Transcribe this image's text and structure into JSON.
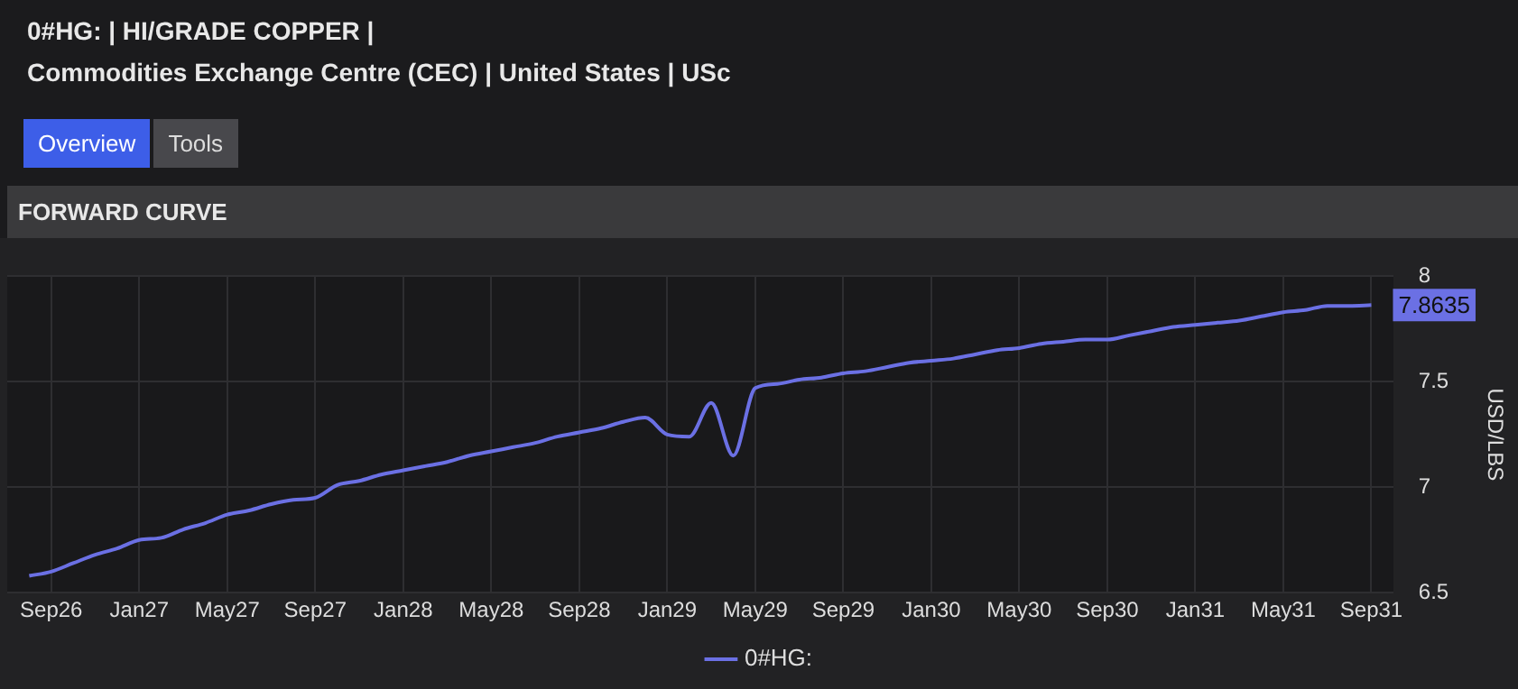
{
  "chart_data": {
    "type": "line",
    "title": "0#HG: | HI/GRADE COPPER |\nCommodities Exchange Centre (CEC) | United States | USc",
    "subtitle": "FORWARD CURVE",
    "ylabel": "USD/LBS",
    "x": [
      "2026-08",
      "2026-09",
      "2026-10",
      "2026-11",
      "2026-12",
      "2027-01",
      "2027-02",
      "2027-03",
      "2027-04",
      "2027-05",
      "2027-06",
      "2027-07",
      "2027-08",
      "2027-09",
      "2027-10",
      "2027-11",
      "2027-12",
      "2028-01",
      "2028-02",
      "2028-03",
      "2028-04",
      "2028-05",
      "2028-06",
      "2028-07",
      "2028-08",
      "2028-09",
      "2028-10",
      "2028-11",
      "2028-12",
      "2029-01",
      "2029-02",
      "2029-03",
      "2029-04",
      "2029-05",
      "2029-06",
      "2029-07",
      "2029-08",
      "2029-09",
      "2029-10",
      "2029-11",
      "2029-12",
      "2030-01",
      "2030-02",
      "2030-03",
      "2030-04",
      "2030-05",
      "2030-06",
      "2030-07",
      "2030-08",
      "2030-09",
      "2030-10",
      "2030-11",
      "2030-12",
      "2031-01",
      "2031-02",
      "2031-03",
      "2031-04",
      "2031-05",
      "2031-06",
      "2031-07",
      "2031-08",
      "2031-09"
    ],
    "series": [
      {
        "name": "0#HG:",
        "color": "#6b70e4",
        "values": [
          6.58,
          6.6,
          6.64,
          6.68,
          6.71,
          6.75,
          6.76,
          6.8,
          6.83,
          6.87,
          6.89,
          6.92,
          6.94,
          6.95,
          7.01,
          7.03,
          7.06,
          7.08,
          7.1,
          7.12,
          7.15,
          7.17,
          7.19,
          7.21,
          7.24,
          7.26,
          7.28,
          7.31,
          7.33,
          7.25,
          7.24,
          7.4,
          7.15,
          7.47,
          7.49,
          7.51,
          7.52,
          7.54,
          7.55,
          7.57,
          7.59,
          7.6,
          7.61,
          7.63,
          7.65,
          7.66,
          7.68,
          7.69,
          7.7,
          7.7,
          7.72,
          7.74,
          7.76,
          7.77,
          7.78,
          7.79,
          7.81,
          7.83,
          7.84,
          7.86,
          7.86,
          7.8635
        ]
      }
    ],
    "xlim": [
      "2026-07",
      "2031-10"
    ],
    "xticks": [
      {
        "value": "2026-09",
        "label": "Sep26"
      },
      {
        "value": "2027-01",
        "label": "Jan27"
      },
      {
        "value": "2027-05",
        "label": "May27"
      },
      {
        "value": "2027-09",
        "label": "Sep27"
      },
      {
        "value": "2028-01",
        "label": "Jan28"
      },
      {
        "value": "2028-05",
        "label": "May28"
      },
      {
        "value": "2028-09",
        "label": "Sep28"
      },
      {
        "value": "2029-01",
        "label": "Jan29"
      },
      {
        "value": "2029-05",
        "label": "May29"
      },
      {
        "value": "2029-09",
        "label": "Sep29"
      },
      {
        "value": "2030-01",
        "label": "Jan30"
      },
      {
        "value": "2030-05",
        "label": "May30"
      },
      {
        "value": "2030-09",
        "label": "Sep30"
      },
      {
        "value": "2031-01",
        "label": "Jan31"
      },
      {
        "value": "2031-05",
        "label": "May31"
      },
      {
        "value": "2031-09",
        "label": "Sep31"
      }
    ],
    "ylim": [
      6.5,
      8
    ],
    "yticks": [
      6.5,
      7,
      7.5,
      8
    ],
    "grid": true,
    "legend": "bottom",
    "marker": "none",
    "line_style": "solid",
    "annotations": [
      "Overview",
      "Tools",
      {
        "text": "7.8635",
        "x": "2031-09",
        "y": 7.8635
      }
    ]
  }
}
